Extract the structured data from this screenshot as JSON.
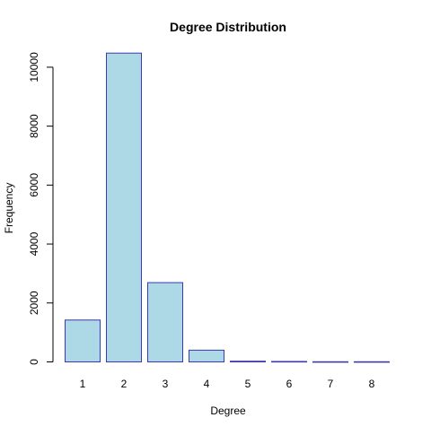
{
  "chart_data": {
    "type": "bar",
    "title": "Degree Distribution",
    "xlabel": "Degree",
    "ylabel": "Frequency",
    "categories": [
      "1",
      "2",
      "3",
      "4",
      "5",
      "6",
      "7",
      "8"
    ],
    "values": [
      1420,
      10480,
      2690,
      400,
      25,
      15,
      5,
      5
    ],
    "ylim": [
      0,
      10500
    ],
    "yticks": [
      0,
      2000,
      4000,
      6000,
      8000,
      10000
    ],
    "ytick_labels": [
      "0",
      "2000",
      "4000",
      "6000",
      "8000",
      "10000"
    ],
    "grid": false,
    "legend": "none",
    "colors": {
      "bar_fill": "#add8e6",
      "bar_stroke": "#3a3aa8",
      "axis": "#000000"
    }
  }
}
